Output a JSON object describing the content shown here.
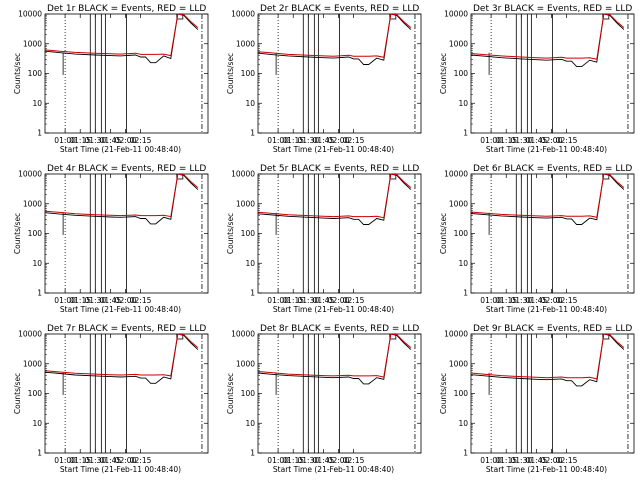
{
  "chart_data": [
    {
      "type": "line",
      "title": "Det 1r  BLACK = Events, RED = LLD",
      "xlabel": "Start Time (21-Feb-11 00:48:40)",
      "ylabel": "Counts/sec",
      "x_ticks": [
        "01:00",
        "01:15",
        "01:30",
        "01:45",
        "02:00",
        "02:15"
      ],
      "y_ticks": [
        "1",
        "10",
        "100",
        "1000",
        "10000"
      ],
      "ylim": [
        1,
        10000
      ],
      "yscale": "log",
      "series": [
        {
          "color": "#000000",
          "x": [
            0,
            15,
            30,
            50,
            65,
            75,
            90,
            95,
            100,
            105,
            110,
            118,
            125,
            132,
            138,
            145,
            152
          ],
          "y": [
            560,
            500,
            450,
            420,
            400,
            390,
            420,
            360,
            360,
            230,
            230,
            390,
            320,
            10000,
            9000,
            5000,
            3000
          ]
        },
        {
          "color": "#cc0000",
          "x": [
            0,
            15,
            30,
            50,
            65,
            75,
            90,
            95,
            100,
            110,
            118,
            125,
            132,
            138,
            145,
            152
          ],
          "y": [
            620,
            560,
            510,
            480,
            460,
            450,
            480,
            440,
            440,
            440,
            450,
            400,
            10000,
            9500,
            5500,
            3500
          ]
        }
      ]
    },
    {
      "type": "line",
      "title": "Det 2r  BLACK = Events, RED = LLD",
      "xlabel": "Start Time (21-Feb-11 00:48:40)",
      "ylabel": "Counts/sec",
      "x_ticks": [
        "01:00",
        "01:15",
        "01:30",
        "01:45",
        "02:00",
        "02:15"
      ],
      "y_ticks": [
        "1",
        "10",
        "100",
        "1000",
        "10000"
      ],
      "ylim": [
        1,
        10000
      ],
      "yscale": "log",
      "series": [
        {
          "color": "#000000",
          "x": [
            0,
            15,
            30,
            50,
            65,
            75,
            90,
            95,
            100,
            105,
            110,
            118,
            125,
            132,
            138,
            145,
            152
          ],
          "y": [
            480,
            430,
            390,
            360,
            340,
            330,
            360,
            310,
            310,
            200,
            200,
            330,
            280,
            10000,
            9000,
            5000,
            3000
          ]
        },
        {
          "color": "#cc0000",
          "x": [
            0,
            15,
            30,
            50,
            65,
            75,
            90,
            95,
            100,
            110,
            118,
            125,
            132,
            138,
            145,
            152
          ],
          "y": [
            540,
            490,
            440,
            410,
            390,
            380,
            410,
            380,
            380,
            380,
            390,
            350,
            10000,
            9500,
            5500,
            3500
          ]
        }
      ]
    },
    {
      "type": "line",
      "title": "Det 3r  BLACK = Events, RED = LLD",
      "xlabel": "Start Time (21-Feb-11 00:48:40)",
      "ylabel": "Counts/sec",
      "x_ticks": [
        "01:00",
        "01:15",
        "01:30",
        "01:45",
        "02:00",
        "02:15"
      ],
      "y_ticks": [
        "1",
        "10",
        "100",
        "1000",
        "10000"
      ],
      "ylim": [
        1,
        10000
      ],
      "yscale": "log",
      "series": [
        {
          "color": "#000000",
          "x": [
            0,
            15,
            30,
            50,
            65,
            75,
            90,
            95,
            100,
            105,
            110,
            118,
            125,
            132,
            138,
            145,
            152
          ],
          "y": [
            420,
            380,
            340,
            310,
            290,
            280,
            300,
            260,
            260,
            170,
            170,
            280,
            240,
            10000,
            9000,
            5000,
            3000
          ]
        },
        {
          "color": "#cc0000",
          "x": [
            0,
            15,
            30,
            50,
            65,
            75,
            90,
            95,
            100,
            110,
            118,
            125,
            132,
            138,
            145,
            152
          ],
          "y": [
            470,
            430,
            390,
            360,
            340,
            330,
            350,
            330,
            330,
            330,
            340,
            300,
            10000,
            9500,
            5500,
            3500
          ]
        }
      ]
    },
    {
      "type": "line",
      "title": "Det 4r  BLACK = Events, RED = LLD",
      "xlabel": "Start Time (21-Feb-11 00:48:40)",
      "ylabel": "Counts/sec",
      "x_ticks": [
        "01:00",
        "01:15",
        "01:30",
        "01:45",
        "02:00",
        "02:15"
      ],
      "y_ticks": [
        "1",
        "10",
        "100",
        "1000",
        "10000"
      ],
      "ylim": [
        1,
        10000
      ],
      "yscale": "log",
      "series": [
        {
          "color": "#000000",
          "x": [
            0,
            15,
            30,
            50,
            65,
            75,
            90,
            95,
            100,
            105,
            110,
            118,
            125,
            132,
            138,
            145,
            152
          ],
          "y": [
            500,
            450,
            410,
            380,
            360,
            350,
            370,
            320,
            320,
            210,
            210,
            350,
            300,
            10000,
            9000,
            5000,
            3000
          ]
        },
        {
          "color": "#cc0000",
          "x": [
            0,
            15,
            30,
            50,
            65,
            75,
            90,
            95,
            100,
            110,
            118,
            125,
            132,
            138,
            145,
            152
          ],
          "y": [
            560,
            510,
            460,
            430,
            410,
            400,
            420,
            400,
            400,
            400,
            410,
            370,
            10000,
            9500,
            5500,
            3500
          ]
        }
      ]
    },
    {
      "type": "line",
      "title": "Det 5r  BLACK = Events, RED = LLD",
      "xlabel": "Start Time (21-Feb-11 00:48:40)",
      "ylabel": "Counts/sec",
      "x_ticks": [
        "01:00",
        "01:15",
        "01:30",
        "01:45",
        "02:00",
        "02:15"
      ],
      "y_ticks": [
        "1",
        "10",
        "100",
        "1000",
        "10000"
      ],
      "ylim": [
        1,
        10000
      ],
      "yscale": "log",
      "series": [
        {
          "color": "#000000",
          "x": [
            0,
            15,
            30,
            50,
            65,
            75,
            90,
            95,
            100,
            105,
            110,
            118,
            125,
            132,
            138,
            145,
            152
          ],
          "y": [
            460,
            420,
            380,
            350,
            330,
            320,
            340,
            300,
            300,
            200,
            200,
            320,
            280,
            10000,
            9000,
            5000,
            3000
          ]
        },
        {
          "color": "#cc0000",
          "x": [
            0,
            15,
            30,
            50,
            65,
            75,
            90,
            95,
            100,
            110,
            118,
            125,
            132,
            138,
            145,
            152
          ],
          "y": [
            520,
            470,
            430,
            400,
            380,
            370,
            390,
            370,
            370,
            370,
            380,
            340,
            10000,
            9500,
            5500,
            3500
          ]
        }
      ]
    },
    {
      "type": "line",
      "title": "Det 6r  BLACK = Events, RED = LLD",
      "xlabel": "Start Time (21-Feb-11 00:48:40)",
      "ylabel": "Counts/sec",
      "x_ticks": [
        "01:00",
        "01:15",
        "01:30",
        "01:45",
        "02:00",
        "02:15"
      ],
      "y_ticks": [
        "1",
        "10",
        "100",
        "1000",
        "10000"
      ],
      "ylim": [
        1,
        10000
      ],
      "yscale": "log",
      "series": [
        {
          "color": "#000000",
          "x": [
            0,
            15,
            30,
            50,
            65,
            75,
            90,
            95,
            100,
            105,
            110,
            118,
            125,
            132,
            138,
            145,
            152
          ],
          "y": [
            470,
            430,
            390,
            360,
            340,
            330,
            350,
            310,
            310,
            200,
            200,
            330,
            290,
            10000,
            9000,
            5000,
            3000
          ]
        },
        {
          "color": "#cc0000",
          "x": [
            0,
            15,
            30,
            50,
            65,
            75,
            90,
            95,
            100,
            110,
            118,
            125,
            132,
            138,
            145,
            152
          ],
          "y": [
            530,
            480,
            440,
            410,
            390,
            380,
            400,
            380,
            380,
            380,
            390,
            350,
            10000,
            9500,
            5500,
            3500
          ]
        }
      ]
    },
    {
      "type": "line",
      "title": "Det 7r  BLACK = Events, RED = LLD",
      "xlabel": "Start Time (21-Feb-11 00:48:40)",
      "ylabel": "Counts/sec",
      "x_ticks": [
        "01:00",
        "01:15",
        "01:30",
        "01:45",
        "02:00",
        "02:15"
      ],
      "y_ticks": [
        "1",
        "10",
        "100",
        "1000",
        "10000"
      ],
      "ylim": [
        1,
        10000
      ],
      "yscale": "log",
      "series": [
        {
          "color": "#000000",
          "x": [
            0,
            15,
            30,
            50,
            65,
            75,
            90,
            95,
            100,
            105,
            110,
            118,
            125,
            132,
            138,
            145,
            152
          ],
          "y": [
            520,
            470,
            420,
            390,
            370,
            360,
            380,
            330,
            330,
            220,
            220,
            360,
            310,
            10000,
            9000,
            5000,
            3000
          ]
        },
        {
          "color": "#cc0000",
          "x": [
            0,
            15,
            30,
            50,
            65,
            75,
            90,
            95,
            100,
            110,
            118,
            125,
            132,
            138,
            145,
            152
          ],
          "y": [
            580,
            530,
            480,
            450,
            430,
            420,
            440,
            420,
            420,
            420,
            430,
            390,
            10000,
            9500,
            5500,
            3500
          ]
        }
      ]
    },
    {
      "type": "line",
      "title": "Det 8r  BLACK = Events, RED = LLD",
      "xlabel": "Start Time (21-Feb-11 00:48:40)",
      "ylabel": "Counts/sec",
      "x_ticks": [
        "01:00",
        "01:15",
        "01:30",
        "01:45",
        "02:00",
        "02:15"
      ],
      "y_ticks": [
        "1",
        "10",
        "100",
        "1000",
        "10000"
      ],
      "ylim": [
        1,
        10000
      ],
      "yscale": "log",
      "series": [
        {
          "color": "#000000",
          "x": [
            0,
            15,
            30,
            50,
            65,
            75,
            90,
            95,
            100,
            105,
            110,
            118,
            125,
            132,
            138,
            145,
            152
          ],
          "y": [
            490,
            440,
            400,
            370,
            350,
            340,
            360,
            320,
            320,
            210,
            210,
            340,
            300,
            10000,
            9000,
            5000,
            3000
          ]
        },
        {
          "color": "#cc0000",
          "x": [
            0,
            15,
            30,
            50,
            65,
            75,
            90,
            95,
            100,
            110,
            118,
            125,
            132,
            138,
            145,
            152
          ],
          "y": [
            550,
            500,
            450,
            420,
            400,
            390,
            410,
            390,
            390,
            390,
            400,
            360,
            10000,
            9500,
            5500,
            3500
          ]
        }
      ]
    },
    {
      "type": "line",
      "title": "Det 9r  BLACK = Events, RED = LLD",
      "xlabel": "Start Time (21-Feb-11 00:48:40)",
      "ylabel": "Counts/sec",
      "x_ticks": [
        "01:00",
        "01:15",
        "01:30",
        "01:45",
        "02:00",
        "02:15"
      ],
      "y_ticks": [
        "1",
        "10",
        "100",
        "1000",
        "10000"
      ],
      "ylim": [
        1,
        10000
      ],
      "yscale": "log",
      "series": [
        {
          "color": "#000000",
          "x": [
            0,
            15,
            30,
            50,
            65,
            75,
            90,
            95,
            100,
            105,
            110,
            118,
            125,
            132,
            138,
            145,
            152
          ],
          "y": [
            430,
            390,
            350,
            320,
            300,
            290,
            310,
            270,
            270,
            180,
            180,
            290,
            250,
            10000,
            9000,
            5000,
            3000
          ]
        },
        {
          "color": "#cc0000",
          "x": [
            0,
            15,
            30,
            50,
            65,
            75,
            90,
            95,
            100,
            110,
            118,
            125,
            132,
            138,
            145,
            152
          ],
          "y": [
            490,
            440,
            400,
            370,
            350,
            340,
            360,
            340,
            340,
            340,
            350,
            310,
            10000,
            9500,
            5500,
            3500
          ]
        }
      ]
    }
  ]
}
